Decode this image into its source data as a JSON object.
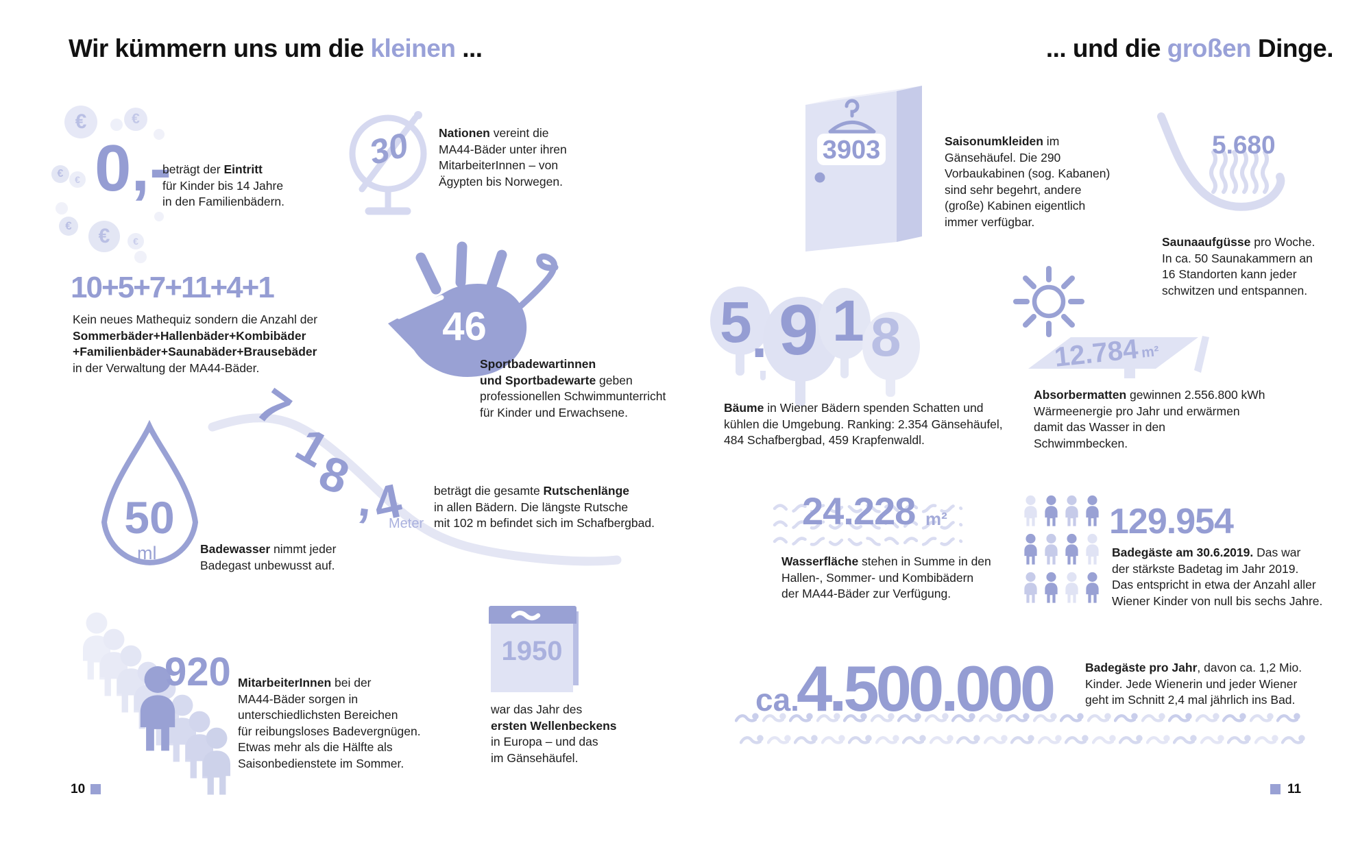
{
  "titles": {
    "left": {
      "pre": "Wir kümmern uns um die ",
      "accent": "kleinen",
      "post": " ..."
    },
    "right": {
      "pre": "... und die ",
      "accent": "großen",
      "post": " Dinge."
    }
  },
  "footer": {
    "left_page": "10",
    "right_page": "11"
  },
  "colors": {
    "accent": "#959dd3",
    "accent_medium": "#b9bfe4",
    "accent_light": "#dfe2f3",
    "text": "#1d1d1d"
  },
  "items": {
    "eintritt": {
      "number": "0,-",
      "euro": "€",
      "text": [
        [
          {
            "t": "beträgt der ",
            "b": 0
          },
          {
            "t": "Eintritt",
            "b": 1
          }
        ],
        [
          {
            "t": "für Kinder bis 14 Jahre",
            "b": 0
          }
        ],
        [
          {
            "t": "in den Familienbädern.",
            "b": 0
          }
        ]
      ]
    },
    "nationen": {
      "number": "30",
      "text": [
        [
          {
            "t": "Nationen",
            "b": 1
          },
          {
            "t": " vereint die",
            "b": 0
          }
        ],
        [
          {
            "t": "MA44-Bäder unter ihren",
            "b": 0
          }
        ],
        [
          {
            "t": "MitarbeiterInnen – von",
            "b": 0
          }
        ],
        [
          {
            "t": "Ägypten bis Norwegen.",
            "b": 0
          }
        ]
      ]
    },
    "mathequiz": {
      "number": "10+5+7+11+4+1",
      "text": [
        [
          {
            "t": "Kein neues Mathequiz sondern die Anzahl der",
            "b": 0
          }
        ],
        [
          {
            "t": "Sommerbäder+Hallenbäder+Kombibäder",
            "b": 1
          }
        ],
        [
          {
            "t": "+Familienbäder+Saunabäder+Brausebäder",
            "b": 1
          }
        ],
        [
          {
            "t": "in der Verwaltung der MA44-Bäder.",
            "b": 0
          }
        ]
      ]
    },
    "sportbadewarte": {
      "number": "46",
      "text": [
        [
          {
            "t": "Sportbadewartinnen",
            "b": 1
          }
        ],
        [
          {
            "t": "und Sportbadewarte",
            "b": 1
          },
          {
            "t": " geben",
            "b": 0
          }
        ],
        [
          {
            "t": "professionellen Schwimmunterricht",
            "b": 0
          }
        ],
        [
          {
            "t": "für Kinder und Erwachsene.",
            "b": 0
          }
        ]
      ]
    },
    "rutsche": {
      "number": "718,4",
      "unit": "Meter",
      "text": [
        [
          {
            "t": "beträgt die gesamte ",
            "b": 0
          },
          {
            "t": "Rutschenlänge",
            "b": 1
          }
        ],
        [
          {
            "t": "in allen Bädern. Die längste Rutsche",
            "b": 0
          }
        ],
        [
          {
            "t": "mit 102 m befindet sich im Schafbergbad.",
            "b": 0
          }
        ]
      ]
    },
    "badewasser": {
      "number": "50",
      "unit": "ml",
      "text": [
        [
          {
            "t": "Badewasser",
            "b": 1
          },
          {
            "t": " nimmt jeder",
            "b": 0
          }
        ],
        [
          {
            "t": "Badegast unbewusst auf.",
            "b": 0
          }
        ]
      ]
    },
    "mitarbeiter": {
      "number": "920",
      "text": [
        [
          {
            "t": "MitarbeiterInnen",
            "b": 1
          },
          {
            "t": " bei der",
            "b": 0
          }
        ],
        [
          {
            "t": "MA44-Bäder sorgen in",
            "b": 0
          }
        ],
        [
          {
            "t": "unterschiedlichsten Bereichen",
            "b": 0
          }
        ],
        [
          {
            "t": "für reibungsloses Badevergnügen.",
            "b": 0
          }
        ],
        [
          {
            "t": "Etwas mehr als die Hälfte als",
            "b": 0
          }
        ],
        [
          {
            "t": "Saisonbedienstete im Sommer.",
            "b": 0
          }
        ]
      ]
    },
    "wellenbecken": {
      "number": "1950",
      "text": [
        [
          {
            "t": "war das Jahr des",
            "b": 0
          }
        ],
        [
          {
            "t": "ersten Wellenbeckens",
            "b": 1
          }
        ],
        [
          {
            "t": "in Europa – und das",
            "b": 0
          }
        ],
        [
          {
            "t": "im Gänsehäufel.",
            "b": 0
          }
        ]
      ]
    },
    "umkleiden": {
      "number": "3903",
      "text": [
        [
          {
            "t": "Saisonumkleiden",
            "b": 1
          },
          {
            "t": " im",
            "b": 0
          }
        ],
        [
          {
            "t": "Gänsehäufel. Die 290",
            "b": 0
          }
        ],
        [
          {
            "t": "Vorbaukabinen (sog. Kabanen)",
            "b": 0
          }
        ],
        [
          {
            "t": "sind sehr begehrt, andere",
            "b": 0
          }
        ],
        [
          {
            "t": "(große) Kabinen eigentlich",
            "b": 0
          }
        ],
        [
          {
            "t": "immer verfügbar.",
            "b": 0
          }
        ]
      ]
    },
    "sauna": {
      "number": "5.680",
      "text": [
        [
          {
            "t": "Saunaaufgüsse",
            "b": 1
          },
          {
            "t": " pro Woche.",
            "b": 0
          }
        ],
        [
          {
            "t": "In ca. 50 Saunakammern an",
            "b": 0
          }
        ],
        [
          {
            "t": "16 Standorten kann jeder",
            "b": 0
          }
        ],
        [
          {
            "t": "schwitzen und entspannen.",
            "b": 0
          }
        ]
      ]
    },
    "baeume": {
      "number": "5.918",
      "text": [
        [
          {
            "t": "Bäume",
            "b": 1
          },
          {
            "t": " in Wiener Bädern spenden Schatten und",
            "b": 0
          }
        ],
        [
          {
            "t": "kühlen die Umgebung. Ranking: 2.354 Gänsehäufel,",
            "b": 0
          }
        ],
        [
          {
            "t": "484 Schafbergbad, 459 Krapfenwaldl.",
            "b": 0
          }
        ]
      ]
    },
    "absorbermatten": {
      "number": "12.784",
      "unit": "m²",
      "text": [
        [
          {
            "t": "Absorbermatten",
            "b": 1
          },
          {
            "t": " gewinnen 2.556.800 kWh",
            "b": 0
          }
        ],
        [
          {
            "t": "Wärmeenergie pro Jahr und erwärmen",
            "b": 0
          }
        ],
        [
          {
            "t": "damit das Wasser in den",
            "b": 0
          }
        ],
        [
          {
            "t": "Schwimmbecken.",
            "b": 0
          }
        ]
      ]
    },
    "wasserflaeche": {
      "number": "24.228",
      "unit": "m²",
      "text": [
        [
          {
            "t": "Wasserfläche",
            "b": 1
          },
          {
            "t": " stehen in Summe in den",
            "b": 0
          }
        ],
        [
          {
            "t": "Hallen-, Sommer- und Kombibädern",
            "b": 0
          }
        ],
        [
          {
            "t": "der MA44-Bäder zur Verfügung.",
            "b": 0
          }
        ]
      ]
    },
    "badetag": {
      "number": "129.954",
      "text": [
        [
          {
            "t": "Badegäste am 30.6.2019.",
            "b": 1
          },
          {
            "t": " Das war",
            "b": 0
          }
        ],
        [
          {
            "t": "der stärkste Badetag im Jahr 2019.",
            "b": 0
          }
        ],
        [
          {
            "t": "Das entspricht in etwa der Anzahl aller",
            "b": 0
          }
        ],
        [
          {
            "t": "Wiener Kinder von null bis sechs Jahre.",
            "b": 0
          }
        ]
      ]
    },
    "jahresgaeste": {
      "prefix": "ca.",
      "number": "4.500.000",
      "text": [
        [
          {
            "t": "Badegäste pro Jahr",
            "b": 1
          },
          {
            "t": ", davon ca. 1,2 Mio.",
            "b": 0
          }
        ],
        [
          {
            "t": "Kinder. Jede Wienerin und jeder Wiener",
            "b": 0
          }
        ],
        [
          {
            "t": "geht im Schnitt 2,4 mal jährlich ins Bad.",
            "b": 0
          }
        ]
      ]
    }
  }
}
